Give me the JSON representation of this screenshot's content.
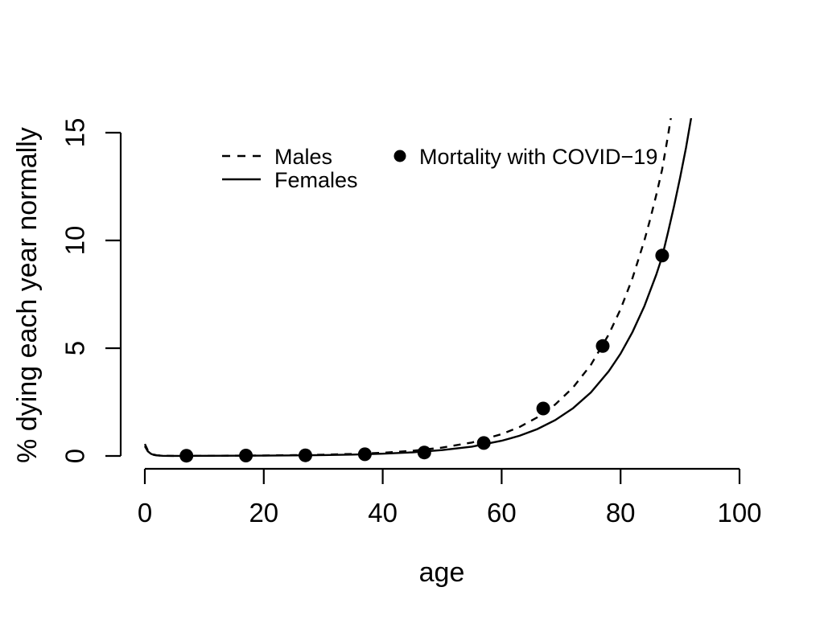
{
  "page": {
    "background": "#ffffff"
  },
  "chart_data": {
    "type": "line",
    "title": "",
    "xlabel": "age",
    "ylabel": "% dying each year normally",
    "xlim": [
      0,
      100
    ],
    "ylim": [
      0,
      15
    ],
    "grid": false,
    "legend_position": "top-left-inside",
    "colors": {
      "lines": "#000000",
      "dots": "#000000",
      "axes": "#000000",
      "text": "#000000"
    },
    "x_ticks": [
      0,
      20,
      40,
      60,
      80,
      100
    ],
    "x_tick_labels": [
      "0",
      "20",
      "40",
      "60",
      "80",
      "100"
    ],
    "y_ticks": [
      0,
      5,
      10,
      15
    ],
    "y_tick_labels": [
      "0",
      "5",
      "10",
      "15"
    ],
    "legend": [
      {
        "label": "Males",
        "marker": "dashed-line"
      },
      {
        "label": "Females",
        "marker": "solid-line"
      },
      {
        "label": "Mortality with COVID−19",
        "marker": "filled-circle"
      }
    ],
    "series": [
      {
        "name": "Males",
        "type": "line",
        "line_style": "dashed",
        "x": [
          0,
          0.5,
          1,
          1.5,
          2,
          3,
          4,
          5,
          7,
          10,
          15,
          20,
          25,
          30,
          35,
          40,
          45,
          50,
          55,
          60,
          63,
          66,
          69,
          72,
          75,
          78,
          80,
          82,
          84,
          85,
          86,
          87,
          88,
          89
        ],
        "y": [
          0.553,
          0.263,
          0.126,
          0.062,
          0.031,
          0.01,
          0.006,
          0.005,
          0.007,
          0.009,
          0.014,
          0.022,
          0.036,
          0.058,
          0.093,
          0.15,
          0.24,
          0.389,
          0.623,
          1.01,
          1.345,
          1.791,
          2.385,
          3.176,
          4.228,
          5.63,
          6.81,
          8.25,
          10.0,
          11.0,
          12.1,
          13.3,
          14.9,
          16.6
        ]
      },
      {
        "name": "Females",
        "type": "line",
        "line_style": "solid",
        "x": [
          0,
          0.5,
          1,
          1.5,
          2,
          3,
          4,
          5,
          7,
          10,
          15,
          20,
          25,
          30,
          35,
          40,
          45,
          50,
          55,
          60,
          63,
          66,
          69,
          72,
          75,
          78,
          80,
          82,
          84,
          86,
          87,
          88,
          89,
          90,
          91,
          92
        ],
        "y": [
          0.452,
          0.215,
          0.103,
          0.05,
          0.025,
          0.008,
          0.004,
          0.004,
          0.005,
          0.006,
          0.01,
          0.016,
          0.025,
          0.04,
          0.065,
          0.105,
          0.168,
          0.271,
          0.434,
          0.704,
          0.937,
          1.248,
          1.662,
          2.214,
          2.947,
          3.924,
          4.746,
          5.75,
          6.951,
          8.407,
          9.25,
          10.4,
          11.6,
          12.9,
          14.3,
          15.9
        ]
      },
      {
        "name": "Mortality with COVID-19",
        "type": "scatter",
        "marker": "filled-circle",
        "x": [
          7,
          17,
          27,
          37,
          47,
          57,
          67,
          77,
          87
        ],
        "y": [
          0.01,
          0.02,
          0.03,
          0.08,
          0.16,
          0.6,
          2.2,
          5.1,
          9.3
        ]
      }
    ]
  }
}
